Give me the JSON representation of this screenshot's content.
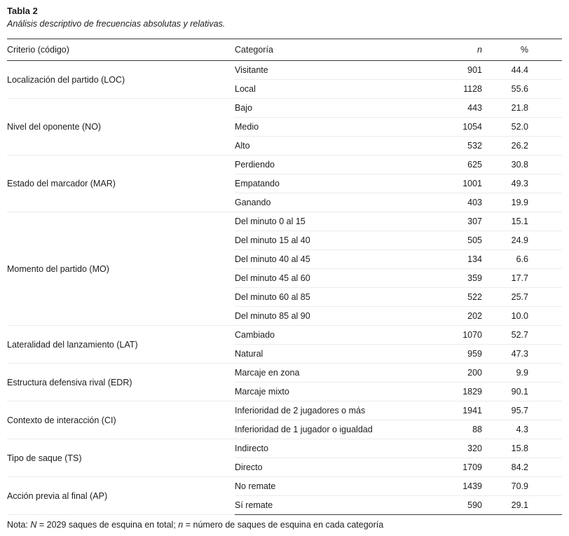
{
  "title": "Tabla 2",
  "subtitle": "Análisis descriptivo de frecuencias absolutas y relativas.",
  "table": {
    "headers": {
      "criterio": "Criterio (código)",
      "categoria": "Categoría",
      "n": "n",
      "pct": "%"
    },
    "groups": [
      {
        "criterio": "Localización del partido (LOC)",
        "rows": [
          {
            "categoria": "Visitante",
            "n": "901",
            "pct": "44.4"
          },
          {
            "categoria": "Local",
            "n": "1128",
            "pct": "55.6"
          }
        ]
      },
      {
        "criterio": "Nivel del oponente (NO)",
        "rows": [
          {
            "categoria": "Bajo",
            "n": "443",
            "pct": "21.8"
          },
          {
            "categoria": "Medio",
            "n": "1054",
            "pct": "52.0"
          },
          {
            "categoria": "Alto",
            "n": "532",
            "pct": "26.2"
          }
        ]
      },
      {
        "criterio": "Estado del marcador (MAR)",
        "rows": [
          {
            "categoria": "Perdiendo",
            "n": "625",
            "pct": "30.8"
          },
          {
            "categoria": "Empatando",
            "n": "1001",
            "pct": "49.3"
          },
          {
            "categoria": "Ganando",
            "n": "403",
            "pct": "19.9"
          }
        ]
      },
      {
        "criterio": "Momento del partido (MO)",
        "rows": [
          {
            "categoria": "Del minuto 0 al 15",
            "n": "307",
            "pct": "15.1"
          },
          {
            "categoria": "Del minuto 15 al 40",
            "n": "505",
            "pct": "24.9"
          },
          {
            "categoria": "Del minuto 40 al 45",
            "n": "134",
            "pct": "6.6"
          },
          {
            "categoria": "Del minuto 45 al 60",
            "n": "359",
            "pct": "17.7"
          },
          {
            "categoria": "Del minuto 60 al 85",
            "n": "522",
            "pct": "25.7"
          },
          {
            "categoria": "Del minuto 85 al 90",
            "n": "202",
            "pct": "10.0"
          }
        ]
      },
      {
        "criterio": "Lateralidad del lanzamiento (LAT)",
        "rows": [
          {
            "categoria": "Cambiado",
            "n": "1070",
            "pct": "52.7"
          },
          {
            "categoria": "Natural",
            "n": "959",
            "pct": "47.3"
          }
        ]
      },
      {
        "criterio": "Estructura defensiva rival (EDR)",
        "rows": [
          {
            "categoria": "Marcaje en zona",
            "n": "200",
            "pct": "9.9"
          },
          {
            "categoria": "Marcaje mixto",
            "n": "1829",
            "pct": "90.1"
          }
        ]
      },
      {
        "criterio": "Contexto de interacción (CI)",
        "rows": [
          {
            "categoria": "Inferioridad de 2 jugadores o más",
            "n": "1941",
            "pct": "95.7"
          },
          {
            "categoria": "Inferioridad de 1 jugador o igualdad",
            "n": "88",
            "pct": "4.3"
          }
        ]
      },
      {
        "criterio": "Tipo de saque (TS)",
        "rows": [
          {
            "categoria": "Indirecto",
            "n": "320",
            "pct": "15.8"
          },
          {
            "categoria": "Directo",
            "n": "1709",
            "pct": "84.2"
          }
        ]
      },
      {
        "criterio": "Acción previa al final (AP)",
        "rows": [
          {
            "categoria": "No remate",
            "n": "1439",
            "pct": "70.9"
          },
          {
            "categoria": "Sí remate",
            "n": "590",
            "pct": "29.1"
          }
        ]
      }
    ]
  },
  "note": {
    "segments": [
      {
        "text": "Nota: ",
        "italic": false
      },
      {
        "text": "N",
        "italic": true
      },
      {
        "text": " = 2029 saques de esquina en total; ",
        "italic": false
      },
      {
        "text": "n",
        "italic": true
      },
      {
        "text": " = número de saques de esquina en cada categoría",
        "italic": false
      }
    ]
  }
}
